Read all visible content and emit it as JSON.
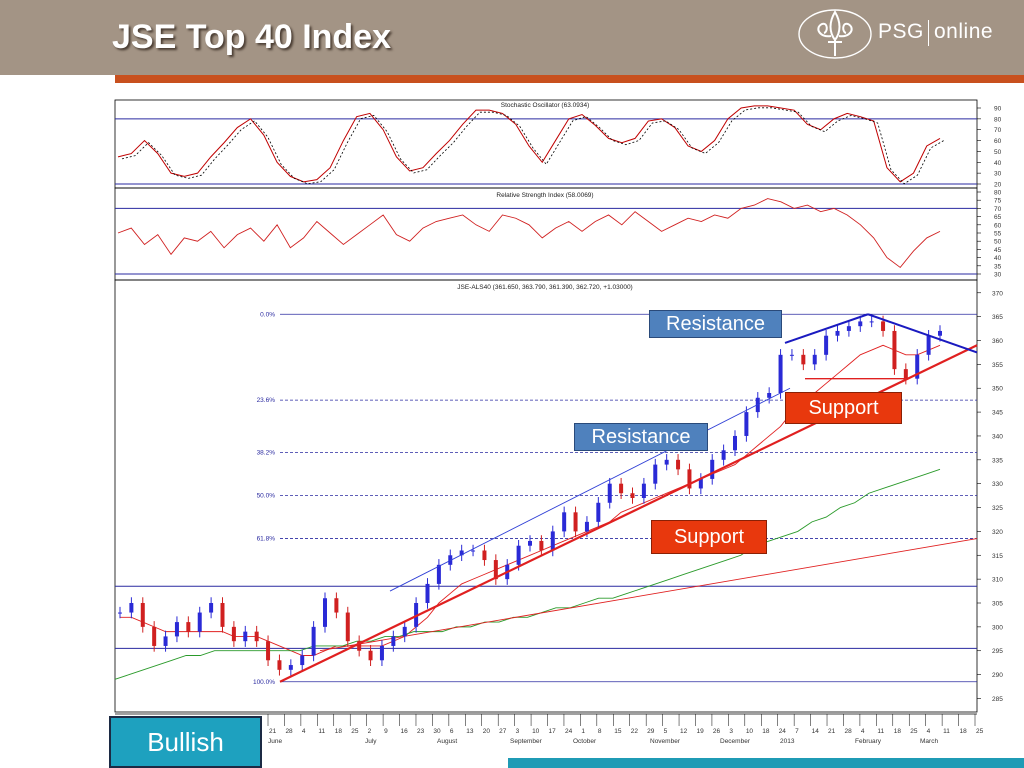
{
  "header": {
    "title": "JSE Top 40 Index",
    "logo_text_left": "PSG",
    "logo_text_right": "online"
  },
  "annotations": {
    "resistance_top": "Resistance",
    "resistance_mid": "Resistance",
    "support_top": "Support",
    "support_mid": "Support",
    "bullish": "Bullish"
  },
  "colors": {
    "header_bg": "#a39485",
    "accent_line": "#c8501e",
    "resistance_box": "#4f81bd",
    "support_box": "#e8380d",
    "bullish_box": "#1ea1bf",
    "ma_short": "#e02020",
    "ma_long": "#2a9a2a",
    "trend_channel": "#2f3fd6",
    "trend_support": "#e02020"
  },
  "chart_data": [
    {
      "type": "line",
      "title": "Stochastic Oscillator (63.0934)",
      "ylim": [
        20,
        90
      ],
      "y_ticks": [
        "90",
        "80",
        "70",
        "60",
        "50",
        "40",
        "30",
        "20"
      ],
      "reference_lines": [
        80,
        20
      ],
      "series": [
        {
          "values": [
            45,
            48,
            60,
            48,
            30,
            27,
            30,
            45,
            58,
            72,
            80,
            65,
            40,
            27,
            22,
            24,
            35,
            60,
            82,
            85,
            70,
            45,
            32,
            35,
            48,
            60,
            75,
            88,
            88,
            85,
            75,
            55,
            40,
            60,
            80,
            84,
            74,
            62,
            58,
            62,
            78,
            80,
            72,
            55,
            50,
            60,
            80,
            90,
            92,
            92,
            90,
            88,
            75,
            70,
            80,
            85,
            82,
            78,
            35,
            22,
            30,
            55,
            62
          ]
        }
      ]
    },
    {
      "type": "line",
      "title": "Relative Strength Index (58.0069)",
      "ylim": [
        30,
        80
      ],
      "y_ticks": [
        "80",
        "75",
        "70",
        "65",
        "60",
        "55",
        "50",
        "45",
        "40",
        "35",
        "30"
      ],
      "reference_lines": [
        70,
        30
      ],
      "series": [
        {
          "values": [
            55,
            58,
            48,
            54,
            42,
            52,
            50,
            56,
            46,
            54,
            58,
            50,
            60,
            46,
            52,
            62,
            55,
            48,
            54,
            60,
            66,
            54,
            50,
            58,
            62,
            64,
            66,
            60,
            56,
            66,
            64,
            60,
            52,
            58,
            62,
            56,
            62,
            66,
            60,
            68,
            62,
            56,
            60,
            64,
            62,
            66,
            64,
            70,
            72,
            76,
            74,
            70,
            72,
            68,
            70,
            66,
            60,
            52,
            40,
            34,
            44,
            52,
            56
          ]
        }
      ]
    },
    {
      "type": "line",
      "title": "JSE-ALS40 (361.650, 363.790, 361.390, 362.720, +1.03000)",
      "ylim": [
        283,
        371
      ],
      "y_ticks": [
        "370",
        "365",
        "360",
        "355",
        "350",
        "345",
        "340",
        "335",
        "330",
        "325",
        "320",
        "315",
        "310",
        "305",
        "300",
        "295",
        "290",
        "285"
      ],
      "x_ticks": [
        "21",
        "28",
        "4",
        "11",
        "18",
        "25",
        "2",
        "9",
        "16",
        "23",
        "30",
        "6",
        "13",
        "20",
        "27",
        "3",
        "10",
        "17",
        "24",
        "1",
        "8",
        "15",
        "22",
        "29",
        "5",
        "12",
        "19",
        "26",
        "3",
        "10",
        "18",
        "24",
        "7",
        "14",
        "21",
        "28",
        "4",
        "11",
        "18",
        "25",
        "4",
        "11",
        "18",
        "25"
      ],
      "x_month_labels": [
        "June",
        "July",
        "August",
        "September",
        "October",
        "November",
        "December",
        "2013",
        "February",
        "March"
      ],
      "fibonacci_levels": [
        {
          "label": "0.0%",
          "value": 365.5
        },
        {
          "label": "23.6%",
          "value": 347.5
        },
        {
          "label": "38.2%",
          "value": 336.5
        },
        {
          "label": "50.0%",
          "value": 327.5
        },
        {
          "label": "61.8%",
          "value": 318.5
        },
        {
          "label": "100.0%",
          "value": 288.5
        }
      ],
      "horizontal_lines": [
        308.5,
        295.5
      ],
      "series": [
        {
          "name": "JSE-ALS40",
          "values": [
            303,
            305,
            300,
            296,
            298,
            301,
            299,
            303,
            305,
            300,
            297,
            299,
            297,
            293,
            291,
            292,
            294,
            300,
            306,
            303,
            297,
            295,
            293,
            296,
            298,
            300,
            305,
            309,
            313,
            315,
            316,
            316,
            314,
            310,
            313,
            317,
            318,
            316,
            320,
            324,
            320,
            322,
            326,
            330,
            328,
            327,
            330,
            334,
            335,
            333,
            329,
            331,
            335,
            337,
            340,
            345,
            348,
            349,
            357,
            357,
            355,
            357,
            361,
            362,
            363,
            364,
            364,
            362,
            354,
            352,
            357,
            361,
            362
          ]
        },
        {
          "name": "Short MA",
          "values": [
            302,
            302,
            301,
            300,
            299,
            299,
            299,
            299,
            299,
            299,
            298,
            298,
            298,
            297,
            296,
            295,
            294,
            294,
            295,
            296,
            296,
            296,
            296,
            296,
            297,
            298,
            300,
            302,
            305,
            307,
            309,
            310,
            311,
            312,
            313,
            314,
            315,
            316,
            317,
            318,
            319,
            320,
            321,
            322,
            324,
            325,
            326,
            327,
            328,
            329,
            330,
            331,
            332,
            333,
            334,
            336,
            338,
            340,
            342,
            345,
            347,
            349,
            351,
            353,
            355,
            357,
            358,
            359,
            358,
            357,
            357,
            358,
            359
          ]
        },
        {
          "name": "Long MA",
          "values": [
            289,
            290,
            291,
            292,
            293,
            294,
            294,
            295,
            295,
            295,
            295,
            295,
            295,
            295,
            296,
            296,
            296,
            297,
            297,
            298,
            298,
            299,
            299,
            299,
            300,
            300,
            301,
            301,
            302,
            302,
            303,
            304,
            304,
            305,
            306,
            306,
            307,
            308,
            309,
            310,
            311,
            312,
            313,
            314,
            315,
            317,
            318,
            319,
            320,
            322,
            323,
            325,
            326,
            328,
            329,
            330,
            331,
            332,
            333
          ]
        }
      ]
    }
  ]
}
